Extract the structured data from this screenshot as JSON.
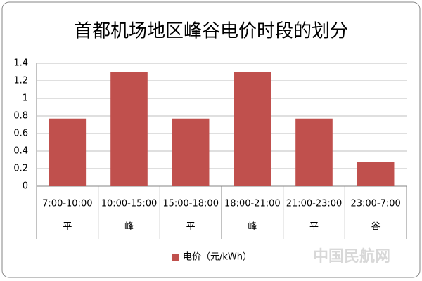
{
  "chart_data": {
    "type": "bar",
    "title": "首都机场地区峰谷电价时段的划分",
    "categories": [
      "7:00-10:00",
      "10:00-15:00",
      "15:00-18:00",
      "18:00-21:00",
      "21:00-23:00",
      "23:00-7:00"
    ],
    "period_labels": [
      "平",
      "峰",
      "平",
      "峰",
      "平",
      "谷"
    ],
    "series": [
      {
        "name": "电价（元/kWh）",
        "color": "#c0504d",
        "values": [
          0.77,
          1.3,
          0.77,
          1.3,
          0.77,
          0.28
        ]
      }
    ],
    "ylim": [
      0,
      1.4
    ],
    "yticks": [
      0,
      0.2,
      0.4,
      0.6,
      0.8,
      1,
      1.2,
      1.4
    ],
    "grid": true,
    "legend": "bottom",
    "watermark": "中国民航网"
  }
}
